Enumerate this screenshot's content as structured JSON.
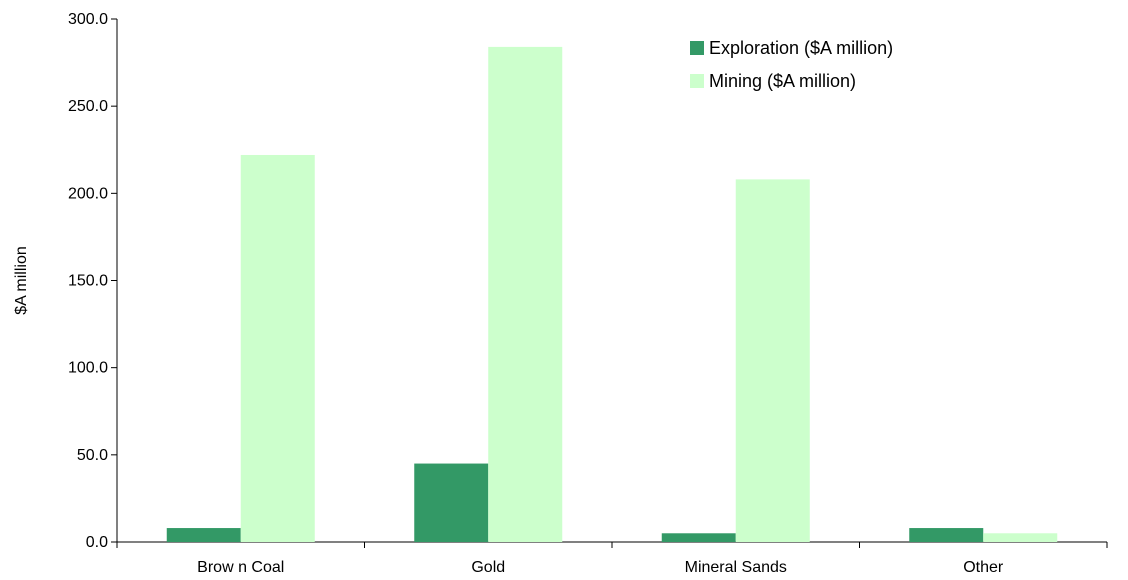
{
  "chart_data": {
    "type": "bar",
    "title": "",
    "xlabel": "",
    "ylabel": "$A million",
    "ylim": [
      0,
      300
    ],
    "y_ticks": [
      "0.0",
      "50.0",
      "100.0",
      "150.0",
      "200.0",
      "250.0",
      "300.0"
    ],
    "categories": [
      "Brow n Coal",
      "Gold",
      "Mineral Sands",
      "Other"
    ],
    "series": [
      {
        "name": "Exploration ($A million)",
        "color": "#339966",
        "values": [
          8,
          45,
          5,
          8
        ]
      },
      {
        "name": "Mining ($A million)",
        "color": "#ccffcc",
        "values": [
          222,
          284,
          208,
          5
        ]
      }
    ],
    "legend_position": "top-right",
    "grid": false
  }
}
